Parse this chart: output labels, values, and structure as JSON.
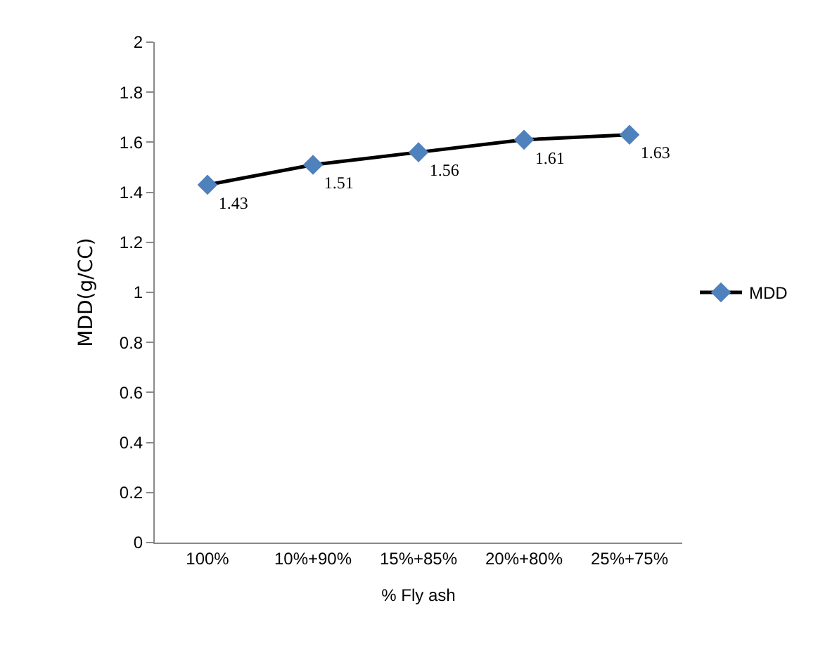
{
  "chart_data": {
    "type": "line",
    "xlabel": "% Fly ash",
    "ylabel": "MDD(g/CC)",
    "categories": [
      "100%",
      "10%+90%",
      "15%+85%",
      "20%+80%",
      "25%+75%"
    ],
    "series": [
      {
        "name": "MDD",
        "color": "#4f81bd",
        "values": [
          1.43,
          1.51,
          1.56,
          1.61,
          1.63
        ]
      }
    ],
    "ylim": [
      0,
      2
    ],
    "yticks": [
      0,
      0.2,
      0.4,
      0.6,
      0.8,
      1,
      1.2,
      1.4,
      1.6,
      1.8,
      2
    ],
    "data_labels": true,
    "marker": "diamond",
    "line_style": "solid",
    "legend": "right"
  }
}
